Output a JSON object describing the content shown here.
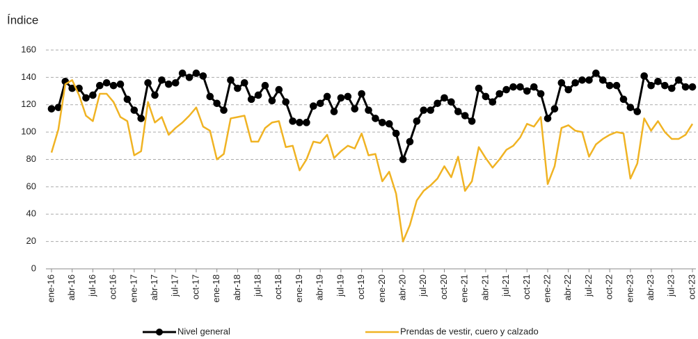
{
  "chart_data": {
    "type": "line",
    "y_label": "Índice",
    "categories": [
      "ene-16",
      null,
      null,
      "abr-16",
      null,
      null,
      "jul-16",
      null,
      null,
      "oct-16",
      null,
      null,
      "ene-17",
      null,
      null,
      "abr-17",
      null,
      null,
      "jul-17",
      null,
      null,
      "oct-17",
      null,
      null,
      "ene-18",
      null,
      null,
      "abr-18",
      null,
      null,
      "jul-18",
      null,
      null,
      "oct-18",
      null,
      null,
      "ene-19",
      null,
      null,
      "abr-19",
      null,
      null,
      "jul-19",
      null,
      null,
      "oct-19",
      null,
      null,
      "ene-20",
      null,
      null,
      "abr-20",
      null,
      null,
      "jul-20",
      null,
      null,
      "oct-20",
      null,
      null,
      "ene-21",
      null,
      null,
      "abr-21",
      null,
      null,
      "jul-21",
      null,
      null,
      "oct-21",
      null,
      null,
      "ene-22",
      null,
      null,
      "abr-22",
      null,
      null,
      "jul-22",
      null,
      null,
      "oct-22",
      null,
      null,
      "ene-23",
      null,
      null,
      "abr-23",
      null,
      null,
      "jul-23",
      null,
      null,
      "oct-23"
    ],
    "series": [
      {
        "name": "Nivel general",
        "color": "#000000",
        "markers": true,
        "values": [
          117,
          118,
          137,
          132,
          132,
          125,
          127,
          134,
          136,
          134,
          135,
          124,
          116,
          110,
          136,
          127,
          138,
          135,
          136,
          143,
          140,
          143,
          141,
          126,
          121,
          116,
          138,
          132,
          136,
          124,
          127,
          134,
          123,
          131,
          122,
          108,
          107,
          107,
          119,
          121,
          126,
          115,
          125,
          126,
          117,
          128,
          116,
          110,
          107,
          106,
          99,
          80,
          93,
          108,
          116,
          116,
          121,
          125,
          122,
          115,
          112,
          108,
          132,
          126,
          122,
          128,
          131,
          133,
          133,
          130,
          133,
          128,
          110,
          117,
          136,
          131,
          136,
          138,
          138,
          143,
          138,
          134,
          134,
          124,
          118,
          115,
          141,
          134,
          137,
          134,
          132,
          138,
          133,
          133
        ]
      },
      {
        "name": "Prendas de vestir, cuero y calzado",
        "color": "#f0b323",
        "markers": false,
        "values": [
          85,
          102,
          135,
          138,
          127,
          112,
          108,
          128,
          128,
          122,
          111,
          108,
          83,
          86,
          122,
          107,
          111,
          98,
          103,
          107,
          112,
          118,
          104,
          101,
          80,
          84,
          110,
          111,
          112,
          93,
          93,
          103,
          107,
          108,
          89,
          90,
          72,
          80,
          93,
          92,
          98,
          81,
          86,
          90,
          88,
          99,
          83,
          84,
          64,
          71,
          55,
          20,
          32,
          50,
          57,
          61,
          66,
          75,
          67,
          82,
          57,
          64,
          89,
          81,
          74,
          80,
          87,
          90,
          96,
          106,
          104,
          111,
          62,
          75,
          103,
          105,
          101,
          100,
          82,
          91,
          95,
          98,
          100,
          99,
          66,
          77,
          110,
          101,
          108,
          100,
          95,
          95,
          98,
          106
        ]
      }
    ],
    "ylim": [
      0,
      160
    ],
    "yticks": [
      0,
      20,
      40,
      60,
      80,
      100,
      120,
      140,
      160
    ],
    "grid": true
  }
}
